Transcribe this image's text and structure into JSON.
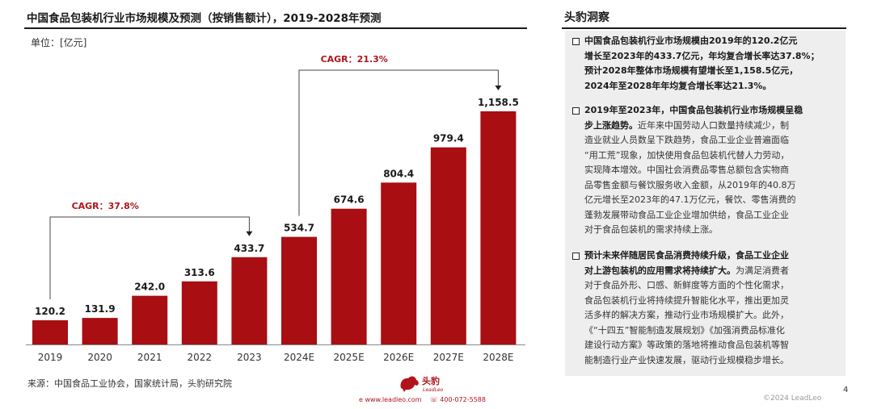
{
  "header": {
    "title": "中国食品包装机行业市场规模及预测（按销售额计），2019-2028年预测",
    "unit": "单位：[亿元]"
  },
  "chart_data": {
    "type": "bar",
    "title": "中国食品包装机行业市场规模及预测（按销售额计），2019-2028年预测",
    "xlabel": "",
    "ylabel": "",
    "unit": "亿元",
    "categories": [
      "2019",
      "2020",
      "2021",
      "2022",
      "2023",
      "2024E",
      "2025E",
      "2026E",
      "2027E",
      "2028E"
    ],
    "values": [
      120.2,
      131.9,
      242.0,
      313.6,
      433.7,
      534.7,
      674.6,
      804.4,
      979.4,
      1158.5
    ],
    "labels": [
      "120.2",
      "131.9",
      "242.0",
      "313.6",
      "433.7",
      "534.7",
      "674.6",
      "804.4",
      "979.4",
      "1,158.5"
    ],
    "bar_color": "#a80e12",
    "ylim": [
      0,
      1158.5
    ],
    "grid": false,
    "legend": "none",
    "annotations": [
      {
        "text": "CAGR：37.8%",
        "from": "2019",
        "to": "2023"
      },
      {
        "text": "CAGR：21.3%",
        "from": "2024E",
        "to": "2028E"
      }
    ]
  },
  "footer": {
    "source": "来源：中国食品工业协会，国家统计局，头豹研究院",
    "brand_cn": "头豹",
    "brand_en": "LeadLeo",
    "website": "www.leadleo.com",
    "phone": "400-072-5588",
    "copyright": "©2024 LeadLeo",
    "page_number": "4"
  },
  "sidebar": {
    "title": "头豹洞察",
    "insights": [
      {
        "lines": [
          {
            "bold": "中国食品包装机行业市场规模由2019年的120.2亿元",
            "text": ""
          },
          {
            "bold": "增长至2023年的433.7亿元，年均复合增长率达37.8%；",
            "text": ""
          },
          {
            "bold": "预计2028年整体市场规模有望增长至1,158.5亿元，",
            "text": ""
          },
          {
            "bold": "2024年至2028年年均复合增长率达21.3%。",
            "text": ""
          }
        ]
      },
      {
        "lines": [
          {
            "bold": "2019年至2023年，中国食品包装机行业市场规模呈稳",
            "text": ""
          },
          {
            "bold": "步上涨趋势。",
            "text": "近年来中国劳动人口数量持续减少，制"
          },
          {
            "bold": "",
            "text": "造业就业人员数呈下跌趋势，食品工业企业普遍面临"
          },
          {
            "bold": "",
            "text": "“用工荒”现象，加快使用食品包装机代替人力劳动，"
          },
          {
            "bold": "",
            "text": "实现降本增效。中国社会消费品零售总额包含实物商"
          },
          {
            "bold": "",
            "text": "品零售金额与餐饮服务收入金额，从2019年的40.8万"
          },
          {
            "bold": "",
            "text": "亿元增长至2023年的47.1万亿元，餐饮、零售消费的"
          },
          {
            "bold": "",
            "text": "蓬勃发展带动食品工业企业增加供给，食品工业企业"
          },
          {
            "bold": "",
            "text": "对于食品包装机的需求持续上涨。"
          }
        ]
      },
      {
        "lines": [
          {
            "bold": "预计未来伴随居民食品消费持续升级，食品工业企业",
            "text": ""
          },
          {
            "bold": "对上游包装机的应用需求将持续扩大。",
            "text": "为满足消费者"
          },
          {
            "bold": "",
            "text": "对于食品外形、口感、新鲜度等方面的个性化需求，"
          },
          {
            "bold": "",
            "text": "食品包装机行业将持续提升智能化水平，推出更加灵"
          },
          {
            "bold": "",
            "text": "活多样的解决方案，推动行业市场规模扩大。此外，"
          },
          {
            "bold": "",
            "text": "《“十四五”智能制造发展规划》《加强消费品标准化"
          },
          {
            "bold": "",
            "text": "建设行动方案》等政策的落地将推动食品包装机等智"
          },
          {
            "bold": "",
            "text": "能制造行业产业快速发展，驱动行业规模稳步增长。"
          }
        ]
      }
    ]
  }
}
